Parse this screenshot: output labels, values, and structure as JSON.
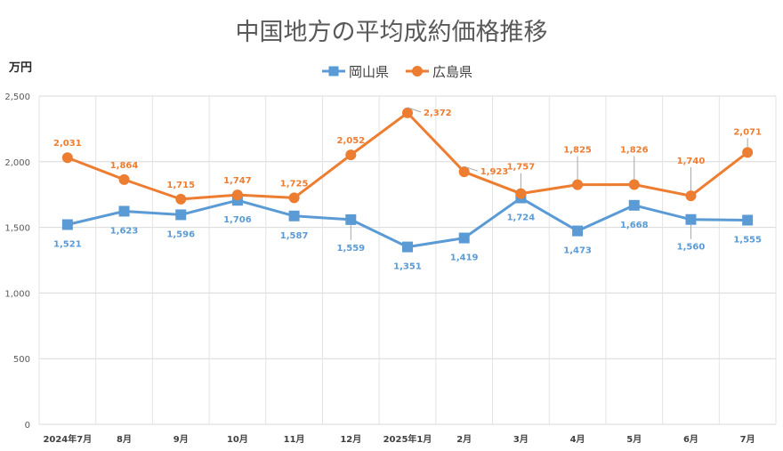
{
  "chart_data": {
    "type": "line",
    "title": "中国地方の平均成約価格推移",
    "ylabel": "万円",
    "categories": [
      "2024年7月",
      "8月",
      "9月",
      "10月",
      "11月",
      "12月",
      "2025年1月",
      "2月",
      "3月",
      "4月",
      "5月",
      "6月",
      "7月"
    ],
    "ylim": [
      0,
      2500
    ],
    "yticks": [
      0,
      500,
      1000,
      1500,
      2000,
      2500
    ],
    "ytick_labels": [
      "0",
      "500",
      "1,000",
      "1,500",
      "2,000",
      "2,500"
    ],
    "grid": true,
    "legend_position": "top-center",
    "series": [
      {
        "name": "岡山県",
        "color": "#5b9bd5",
        "marker": "square",
        "values": [
          1521,
          1623,
          1596,
          1706,
          1587,
          1559,
          1351,
          1419,
          1724,
          1473,
          1668,
          1560,
          1555
        ],
        "labels": [
          "1,521",
          "1,623",
          "1,596",
          "1,706",
          "1,587",
          "1,559",
          "1,351",
          "1,419",
          "1,724",
          "1,473",
          "1,668",
          "1,560",
          "1,555"
        ]
      },
      {
        "name": "広島県",
        "color": "#ed7d31",
        "marker": "circle",
        "values": [
          2031,
          1864,
          1715,
          1747,
          1725,
          2052,
          2372,
          1923,
          1757,
          1825,
          1826,
          1740,
          2071
        ],
        "labels": [
          "2,031",
          "1,864",
          "1,715",
          "1,747",
          "1,725",
          "2,052",
          "2,372",
          "1,923",
          "1,757",
          "1,825",
          "1,826",
          "1,740",
          "2,071"
        ]
      }
    ]
  }
}
